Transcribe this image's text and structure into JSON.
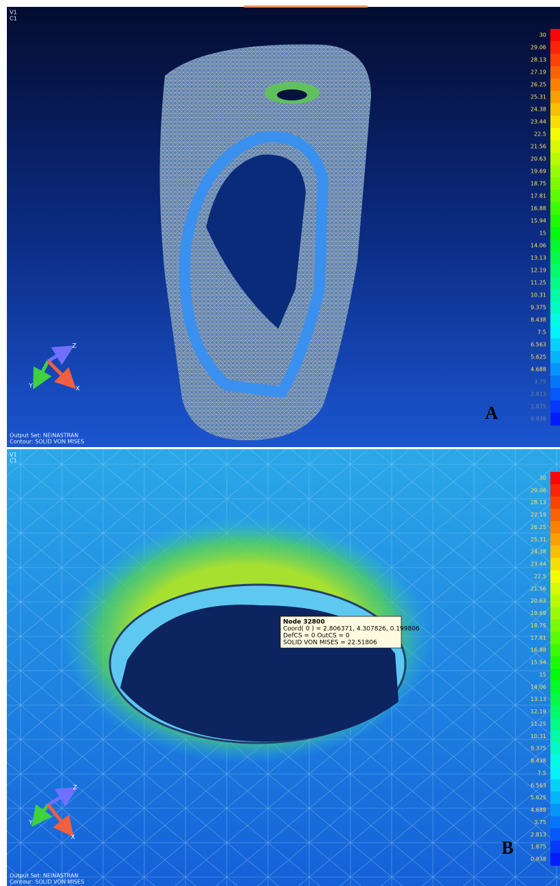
{
  "panels": [
    {
      "label": "A",
      "view": "V1",
      "case": "C1",
      "legend": [
        "30",
        "29.06",
        "28.13",
        "27.19",
        "26.25",
        "25.31",
        "24.38",
        "23.44",
        "22.5",
        "21.56",
        "20.63",
        "19.69",
        "18.75",
        "17.81",
        "16.88",
        "15.94",
        "15",
        "14.06",
        "13.13",
        "12.19",
        "11.25",
        "10.31",
        "9.375",
        "8.438",
        "7.5",
        "6.563",
        "5.625",
        "4.688",
        "3.75",
        "2.813",
        "1.875",
        "0.938"
      ],
      "output_set": "Output Set: NEiNASTRAN",
      "contour": "Contour: SOLID VON MISES",
      "axes": [
        "X",
        "Y",
        "Z"
      ]
    },
    {
      "label": "B",
      "view": "V1",
      "case": "C1",
      "legend": [
        "30",
        "29.06",
        "28.13",
        "27.19",
        "26.25",
        "25.31",
        "24.38",
        "23.44",
        "22.5",
        "21.56",
        "20.63",
        "19.69",
        "18.75",
        "17.81",
        "16.88",
        "15.94",
        "15",
        "14.06",
        "13.13",
        "12.19",
        "11.25",
        "10.31",
        "9.375",
        "8.438",
        "7.5",
        "6.563",
        "5.625",
        "4.688",
        "3.75",
        "2.813",
        "1.875",
        "0.938"
      ],
      "output_set": "Output Set: NEiNASTRAN",
      "contour": "Contour: SOLID VON MISES",
      "axes": [
        "X",
        "Y",
        "Z"
      ],
      "tooltip": {
        "title": "Node 32800",
        "lines": [
          "Coord( 0 ) = 2.806371, 4.307826, 0.199806",
          "DefCS = 0  OutCS = 0",
          "SOLID VON MISES      = 22.51806"
        ]
      }
    }
  ]
}
